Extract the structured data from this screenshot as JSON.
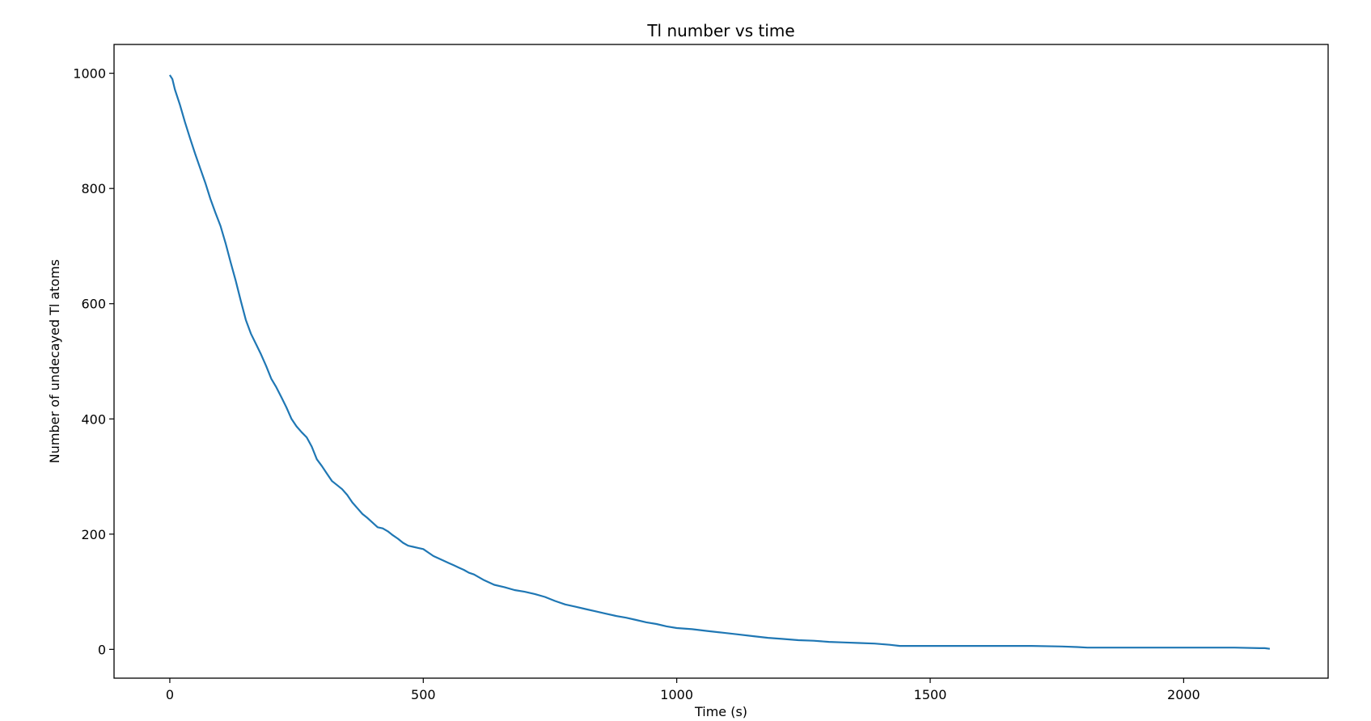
{
  "chart_data": {
    "type": "line",
    "title": "Tl number vs time",
    "xlabel": "Time (s)",
    "ylabel": "Number of undecayed Tl atoms",
    "xlim": [
      -110,
      2285
    ],
    "ylim": [
      -50,
      1050
    ],
    "xticks": [
      0,
      500,
      1000,
      1500,
      2000
    ],
    "yticks": [
      0,
      200,
      400,
      600,
      800,
      1000
    ],
    "grid": false,
    "series": [
      {
        "color": "#1f77b4",
        "x": [
          0,
          5,
          10,
          20,
          30,
          40,
          50,
          60,
          70,
          80,
          90,
          100,
          110,
          120,
          130,
          140,
          150,
          160,
          170,
          180,
          190,
          200,
          210,
          220,
          230,
          240,
          250,
          260,
          270,
          280,
          290,
          300,
          310,
          320,
          330,
          340,
          350,
          360,
          370,
          380,
          390,
          400,
          410,
          420,
          430,
          440,
          450,
          460,
          470,
          480,
          490,
          500,
          510,
          520,
          530,
          540,
          550,
          560,
          570,
          580,
          590,
          600,
          620,
          640,
          660,
          680,
          700,
          720,
          740,
          760,
          780,
          800,
          820,
          840,
          860,
          880,
          900,
          920,
          940,
          960,
          980,
          1000,
          1030,
          1060,
          1090,
          1120,
          1150,
          1180,
          1210,
          1240,
          1270,
          1300,
          1330,
          1360,
          1390,
          1420,
          1440,
          1500,
          1600,
          1700,
          1760,
          1790,
          1810,
          1900,
          2000,
          2100,
          2150,
          2160,
          2170
        ],
        "y": [
          997,
          990,
          972,
          945,
          915,
          887,
          860,
          835,
          810,
          782,
          758,
          735,
          705,
          672,
          640,
          605,
          572,
          548,
          530,
          512,
          492,
          470,
          455,
          438,
          420,
          400,
          387,
          377,
          368,
          352,
          330,
          318,
          305,
          292,
          285,
          278,
          268,
          255,
          245,
          235,
          228,
          220,
          212,
          210,
          205,
          198,
          192,
          185,
          180,
          178,
          176,
          174,
          168,
          162,
          158,
          154,
          150,
          146,
          142,
          138,
          133,
          130,
          120,
          112,
          108,
          103,
          100,
          96,
          91,
          84,
          78,
          74,
          70,
          66,
          62,
          58,
          55,
          51,
          47,
          44,
          40,
          37,
          35,
          32,
          29,
          26,
          23,
          20,
          18,
          16,
          15,
          13,
          12,
          11,
          10,
          8,
          6,
          6,
          6,
          6,
          5,
          4,
          3,
          3,
          3,
          3,
          2,
          2,
          1
        ]
      }
    ]
  }
}
